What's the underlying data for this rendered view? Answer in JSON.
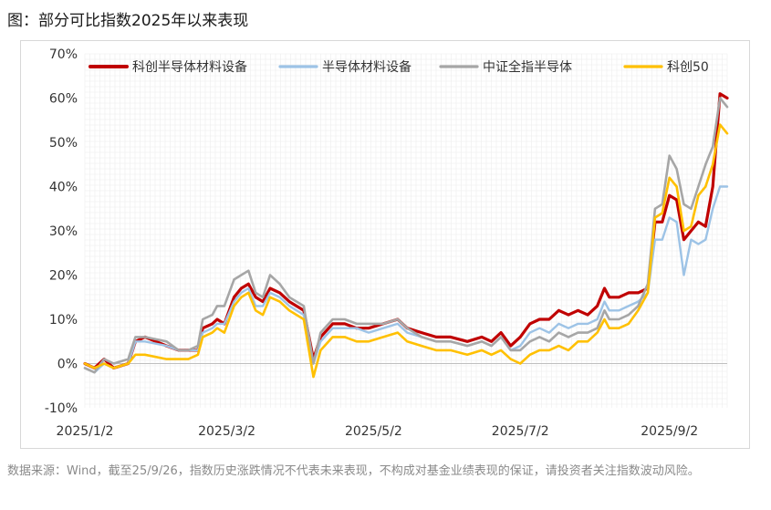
{
  "figure": {
    "title": "图：部分可比指数2025年以来表现",
    "source_note": "数据来源：Wind，截至25/9/26，指数历史涨跌情况不代表未来表现，不构成对基金业绩表现的保证，请投资者关注指数波动风险。"
  },
  "chart_data": {
    "type": "line",
    "title": "",
    "xlabel": "",
    "ylabel": "",
    "ylim": [
      -10,
      70
    ],
    "y_ticks": [
      -10,
      0,
      10,
      20,
      30,
      40,
      50,
      60,
      70
    ],
    "y_tick_labels": [
      "-10%",
      "0%",
      "10%",
      "20%",
      "30%",
      "40%",
      "50%",
      "60%",
      "70%"
    ],
    "x_range": [
      "2025-01-02",
      "2025-09-26"
    ],
    "x_ticks": [
      "2025-01-02",
      "2025-03-02",
      "2025-05-02",
      "2025-07-02",
      "2025-09-02"
    ],
    "x_tick_labels": [
      "2025/1/2",
      "2025/3/2",
      "2025/5/2",
      "2025/7/2",
      "2025/9/2"
    ],
    "grid": true,
    "legend_position": "top",
    "series": [
      {
        "name": "科创半导体材料设备",
        "color": "#c00000",
        "width": 3.2,
        "points": [
          [
            "2025-01-02",
            0
          ],
          [
            "2025-01-06",
            -1
          ],
          [
            "2025-01-10",
            1
          ],
          [
            "2025-01-14",
            -1
          ],
          [
            "2025-01-20",
            0
          ],
          [
            "2025-01-23",
            5
          ],
          [
            "2025-01-27",
            6
          ],
          [
            "2025-02-05",
            4
          ],
          [
            "2025-02-10",
            3
          ],
          [
            "2025-02-14",
            3
          ],
          [
            "2025-02-18",
            3
          ],
          [
            "2025-02-20",
            8
          ],
          [
            "2025-02-24",
            9
          ],
          [
            "2025-02-26",
            10
          ],
          [
            "2025-03-01",
            9
          ],
          [
            "2025-03-05",
            15
          ],
          [
            "2025-03-08",
            17
          ],
          [
            "2025-03-11",
            18
          ],
          [
            "2025-03-14",
            15
          ],
          [
            "2025-03-17",
            14
          ],
          [
            "2025-03-20",
            17
          ],
          [
            "2025-03-24",
            16
          ],
          [
            "2025-03-28",
            14
          ],
          [
            "2025-04-03",
            12
          ],
          [
            "2025-04-07",
            1
          ],
          [
            "2025-04-10",
            6
          ],
          [
            "2025-04-15",
            9
          ],
          [
            "2025-04-20",
            9
          ],
          [
            "2025-04-25",
            8
          ],
          [
            "2025-04-30",
            8
          ],
          [
            "2025-05-06",
            9
          ],
          [
            "2025-05-12",
            10
          ],
          [
            "2025-05-16",
            8
          ],
          [
            "2025-05-22",
            7
          ],
          [
            "2025-05-28",
            6
          ],
          [
            "2025-06-03",
            6
          ],
          [
            "2025-06-10",
            5
          ],
          [
            "2025-06-16",
            6
          ],
          [
            "2025-06-20",
            5
          ],
          [
            "2025-06-24",
            7
          ],
          [
            "2025-06-28",
            4
          ],
          [
            "2025-07-02",
            6
          ],
          [
            "2025-07-06",
            9
          ],
          [
            "2025-07-10",
            10
          ],
          [
            "2025-07-14",
            10
          ],
          [
            "2025-07-18",
            12
          ],
          [
            "2025-07-22",
            11
          ],
          [
            "2025-07-26",
            12
          ],
          [
            "2025-07-30",
            11
          ],
          [
            "2025-08-03",
            13
          ],
          [
            "2025-08-06",
            17
          ],
          [
            "2025-08-08",
            15
          ],
          [
            "2025-08-12",
            15
          ],
          [
            "2025-08-16",
            16
          ],
          [
            "2025-08-20",
            16
          ],
          [
            "2025-08-24",
            17
          ],
          [
            "2025-08-27",
            32
          ],
          [
            "2025-08-30",
            32
          ],
          [
            "2025-09-02",
            38
          ],
          [
            "2025-09-05",
            37
          ],
          [
            "2025-09-08",
            28
          ],
          [
            "2025-09-11",
            30
          ],
          [
            "2025-09-14",
            32
          ],
          [
            "2025-09-17",
            31
          ],
          [
            "2025-09-20",
            40
          ],
          [
            "2025-09-23",
            61
          ],
          [
            "2025-09-26",
            60
          ]
        ]
      },
      {
        "name": "半导体材料设备",
        "color": "#9dc3e6",
        "width": 2.4,
        "points": [
          [
            "2025-01-02",
            -1
          ],
          [
            "2025-01-06",
            -2
          ],
          [
            "2025-01-10",
            0
          ],
          [
            "2025-01-14",
            -1
          ],
          [
            "2025-01-20",
            0
          ],
          [
            "2025-01-23",
            5
          ],
          [
            "2025-01-27",
            5
          ],
          [
            "2025-02-05",
            4
          ],
          [
            "2025-02-10",
            3
          ],
          [
            "2025-02-14",
            3
          ],
          [
            "2025-02-18",
            3
          ],
          [
            "2025-02-20",
            7
          ],
          [
            "2025-02-24",
            8
          ],
          [
            "2025-02-26",
            9
          ],
          [
            "2025-03-01",
            9
          ],
          [
            "2025-03-05",
            14
          ],
          [
            "2025-03-08",
            16
          ],
          [
            "2025-03-11",
            17
          ],
          [
            "2025-03-14",
            13
          ],
          [
            "2025-03-17",
            13
          ],
          [
            "2025-03-20",
            16
          ],
          [
            "2025-03-24",
            15
          ],
          [
            "2025-03-28",
            13
          ],
          [
            "2025-04-03",
            11
          ],
          [
            "2025-04-07",
            0
          ],
          [
            "2025-04-10",
            5
          ],
          [
            "2025-04-15",
            8
          ],
          [
            "2025-04-20",
            8
          ],
          [
            "2025-04-25",
            8
          ],
          [
            "2025-04-30",
            7
          ],
          [
            "2025-05-06",
            8
          ],
          [
            "2025-05-12",
            9
          ],
          [
            "2025-05-16",
            7
          ],
          [
            "2025-05-22",
            6
          ],
          [
            "2025-05-28",
            5
          ],
          [
            "2025-06-03",
            5
          ],
          [
            "2025-06-10",
            4
          ],
          [
            "2025-06-16",
            5
          ],
          [
            "2025-06-20",
            4
          ],
          [
            "2025-06-24",
            6
          ],
          [
            "2025-06-28",
            3
          ],
          [
            "2025-07-02",
            4
          ],
          [
            "2025-07-06",
            7
          ],
          [
            "2025-07-10",
            8
          ],
          [
            "2025-07-14",
            7
          ],
          [
            "2025-07-18",
            9
          ],
          [
            "2025-07-22",
            8
          ],
          [
            "2025-07-26",
            9
          ],
          [
            "2025-07-30",
            9
          ],
          [
            "2025-08-03",
            10
          ],
          [
            "2025-08-06",
            14
          ],
          [
            "2025-08-08",
            12
          ],
          [
            "2025-08-12",
            12
          ],
          [
            "2025-08-16",
            13
          ],
          [
            "2025-08-20",
            14
          ],
          [
            "2025-08-24",
            16
          ],
          [
            "2025-08-27",
            28
          ],
          [
            "2025-08-30",
            28
          ],
          [
            "2025-09-02",
            33
          ],
          [
            "2025-09-05",
            32
          ],
          [
            "2025-09-08",
            20
          ],
          [
            "2025-09-11",
            28
          ],
          [
            "2025-09-14",
            27
          ],
          [
            "2025-09-17",
            28
          ],
          [
            "2025-09-20",
            35
          ],
          [
            "2025-09-23",
            40
          ],
          [
            "2025-09-26",
            40
          ]
        ]
      },
      {
        "name": "中证全指半导体",
        "color": "#a6a6a6",
        "width": 2.6,
        "points": [
          [
            "2025-01-02",
            -1
          ],
          [
            "2025-01-06",
            -2
          ],
          [
            "2025-01-10",
            1
          ],
          [
            "2025-01-14",
            0
          ],
          [
            "2025-01-20",
            1
          ],
          [
            "2025-01-23",
            6
          ],
          [
            "2025-01-27",
            6
          ],
          [
            "2025-02-05",
            5
          ],
          [
            "2025-02-10",
            3
          ],
          [
            "2025-02-14",
            3
          ],
          [
            "2025-02-18",
            4
          ],
          [
            "2025-02-20",
            10
          ],
          [
            "2025-02-24",
            11
          ],
          [
            "2025-02-26",
            13
          ],
          [
            "2025-03-01",
            13
          ],
          [
            "2025-03-05",
            19
          ],
          [
            "2025-03-08",
            20
          ],
          [
            "2025-03-11",
            21
          ],
          [
            "2025-03-14",
            16
          ],
          [
            "2025-03-17",
            15
          ],
          [
            "2025-03-20",
            20
          ],
          [
            "2025-03-24",
            18
          ],
          [
            "2025-03-28",
            15
          ],
          [
            "2025-04-03",
            13
          ],
          [
            "2025-04-07",
            0
          ],
          [
            "2025-04-10",
            7
          ],
          [
            "2025-04-15",
            10
          ],
          [
            "2025-04-20",
            10
          ],
          [
            "2025-04-25",
            9
          ],
          [
            "2025-04-30",
            9
          ],
          [
            "2025-05-06",
            9
          ],
          [
            "2025-05-12",
            10
          ],
          [
            "2025-05-16",
            8
          ],
          [
            "2025-05-22",
            6
          ],
          [
            "2025-05-28",
            5
          ],
          [
            "2025-06-03",
            5
          ],
          [
            "2025-06-10",
            4
          ],
          [
            "2025-06-16",
            5
          ],
          [
            "2025-06-20",
            4
          ],
          [
            "2025-06-24",
            6
          ],
          [
            "2025-06-28",
            3
          ],
          [
            "2025-07-02",
            3
          ],
          [
            "2025-07-06",
            5
          ],
          [
            "2025-07-10",
            6
          ],
          [
            "2025-07-14",
            5
          ],
          [
            "2025-07-18",
            7
          ],
          [
            "2025-07-22",
            6
          ],
          [
            "2025-07-26",
            7
          ],
          [
            "2025-07-30",
            7
          ],
          [
            "2025-08-03",
            8
          ],
          [
            "2025-08-06",
            12
          ],
          [
            "2025-08-08",
            10
          ],
          [
            "2025-08-12",
            10
          ],
          [
            "2025-08-16",
            11
          ],
          [
            "2025-08-20",
            13
          ],
          [
            "2025-08-24",
            18
          ],
          [
            "2025-08-27",
            35
          ],
          [
            "2025-08-30",
            36
          ],
          [
            "2025-09-02",
            47
          ],
          [
            "2025-09-05",
            44
          ],
          [
            "2025-09-08",
            36
          ],
          [
            "2025-09-11",
            35
          ],
          [
            "2025-09-14",
            40
          ],
          [
            "2025-09-17",
            45
          ],
          [
            "2025-09-20",
            49
          ],
          [
            "2025-09-23",
            60
          ],
          [
            "2025-09-26",
            58
          ]
        ]
      },
      {
        "name": "科创50",
        "color": "#ffc000",
        "width": 2.6,
        "points": [
          [
            "2025-01-02",
            0
          ],
          [
            "2025-01-06",
            -1
          ],
          [
            "2025-01-10",
            0
          ],
          [
            "2025-01-14",
            -1
          ],
          [
            "2025-01-20",
            0
          ],
          [
            "2025-01-23",
            2
          ],
          [
            "2025-01-27",
            2
          ],
          [
            "2025-02-05",
            1
          ],
          [
            "2025-02-10",
            1
          ],
          [
            "2025-02-14",
            1
          ],
          [
            "2025-02-18",
            2
          ],
          [
            "2025-02-20",
            6
          ],
          [
            "2025-02-24",
            7
          ],
          [
            "2025-02-26",
            8
          ],
          [
            "2025-03-01",
            7
          ],
          [
            "2025-03-05",
            13
          ],
          [
            "2025-03-08",
            15
          ],
          [
            "2025-03-11",
            16
          ],
          [
            "2025-03-14",
            12
          ],
          [
            "2025-03-17",
            11
          ],
          [
            "2025-03-20",
            15
          ],
          [
            "2025-03-24",
            14
          ],
          [
            "2025-03-28",
            12
          ],
          [
            "2025-04-03",
            10
          ],
          [
            "2025-04-07",
            -3
          ],
          [
            "2025-04-10",
            3
          ],
          [
            "2025-04-15",
            6
          ],
          [
            "2025-04-20",
            6
          ],
          [
            "2025-04-25",
            5
          ],
          [
            "2025-04-30",
            5
          ],
          [
            "2025-05-06",
            6
          ],
          [
            "2025-05-12",
            7
          ],
          [
            "2025-05-16",
            5
          ],
          [
            "2025-05-22",
            4
          ],
          [
            "2025-05-28",
            3
          ],
          [
            "2025-06-03",
            3
          ],
          [
            "2025-06-10",
            2
          ],
          [
            "2025-06-16",
            3
          ],
          [
            "2025-06-20",
            2
          ],
          [
            "2025-06-24",
            3
          ],
          [
            "2025-06-28",
            1
          ],
          [
            "2025-07-02",
            0
          ],
          [
            "2025-07-06",
            2
          ],
          [
            "2025-07-10",
            3
          ],
          [
            "2025-07-14",
            3
          ],
          [
            "2025-07-18",
            4
          ],
          [
            "2025-07-22",
            3
          ],
          [
            "2025-07-26",
            5
          ],
          [
            "2025-07-30",
            5
          ],
          [
            "2025-08-03",
            7
          ],
          [
            "2025-08-06",
            10
          ],
          [
            "2025-08-08",
            8
          ],
          [
            "2025-08-12",
            8
          ],
          [
            "2025-08-16",
            9
          ],
          [
            "2025-08-20",
            12
          ],
          [
            "2025-08-24",
            16
          ],
          [
            "2025-08-27",
            33
          ],
          [
            "2025-08-30",
            34
          ],
          [
            "2025-09-02",
            42
          ],
          [
            "2025-09-05",
            40
          ],
          [
            "2025-09-08",
            30
          ],
          [
            "2025-09-11",
            31
          ],
          [
            "2025-09-14",
            38
          ],
          [
            "2025-09-17",
            40
          ],
          [
            "2025-09-20",
            45
          ],
          [
            "2025-09-23",
            54
          ],
          [
            "2025-09-26",
            52
          ]
        ]
      }
    ]
  }
}
